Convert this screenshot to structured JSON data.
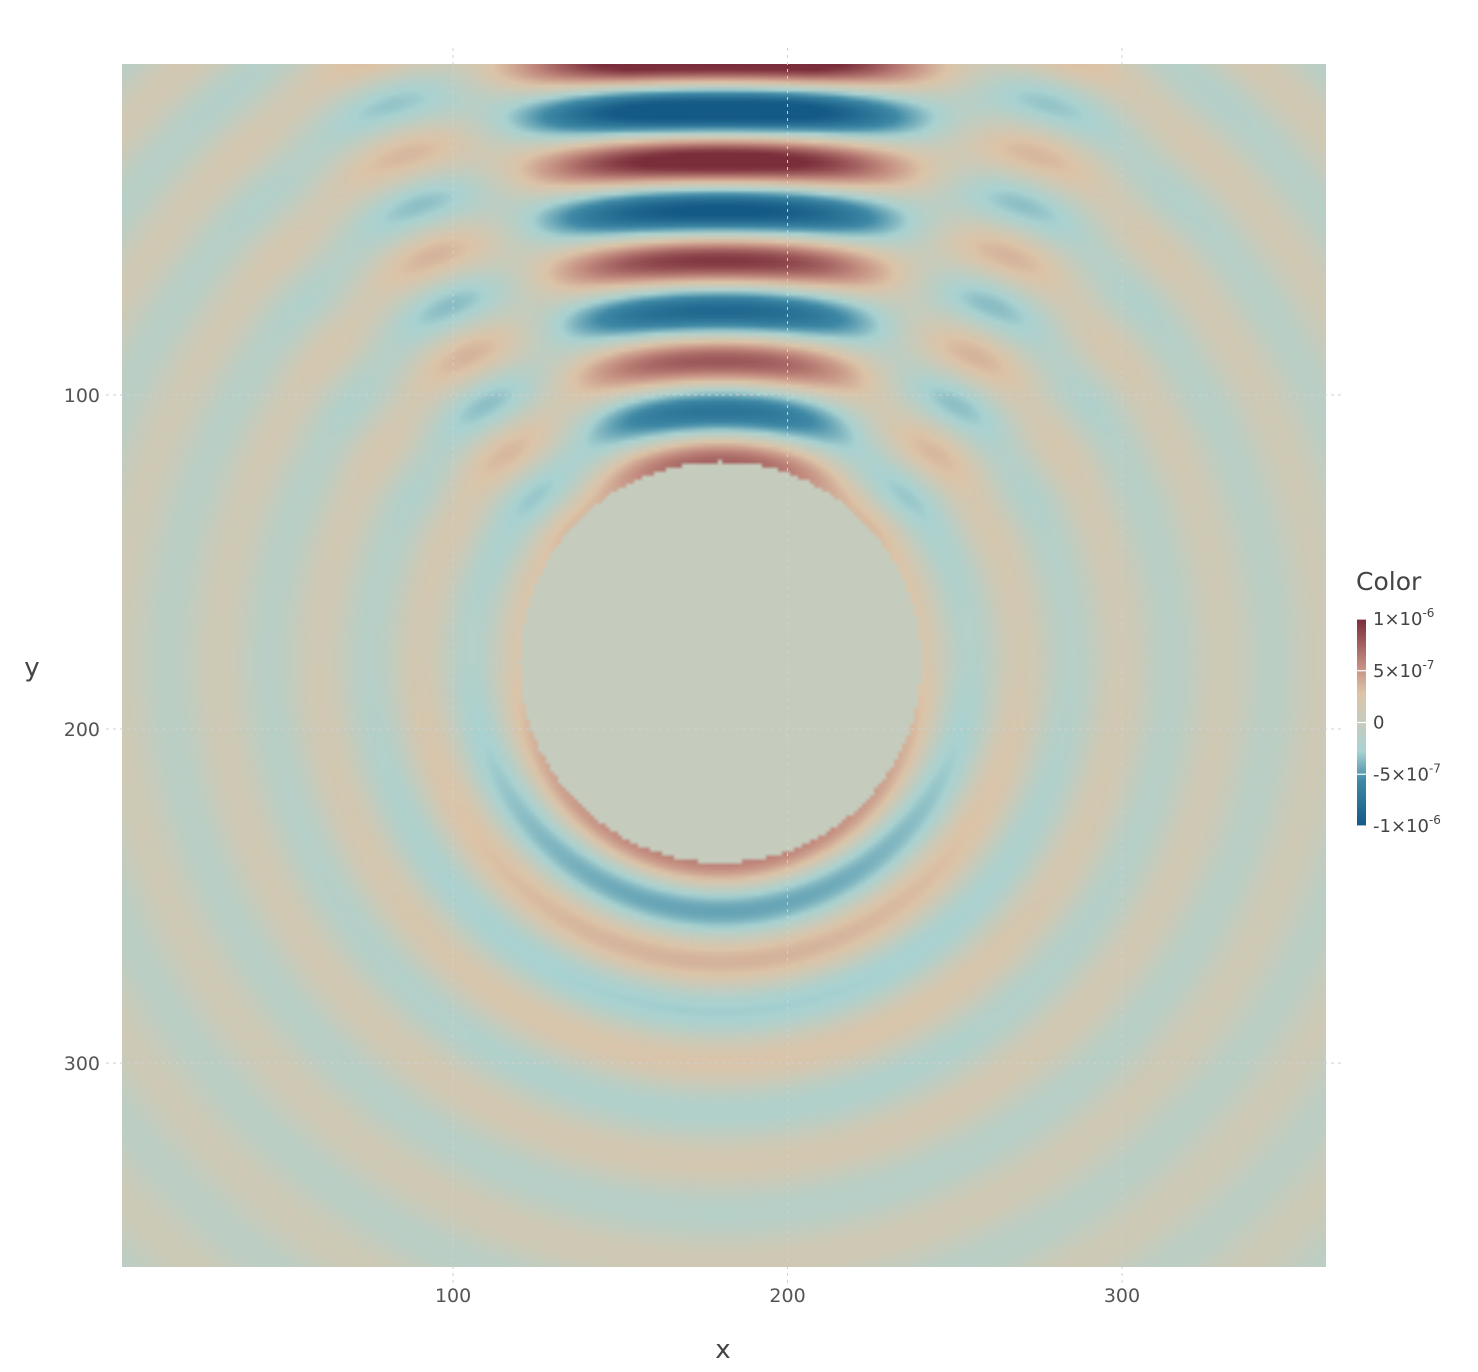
{
  "chart_data": {
    "type": "heatmap",
    "title": "",
    "xlabel": "x",
    "ylabel": "y",
    "xlim": [
      1,
      361
    ],
    "ylim": [
      1,
      361
    ],
    "y_reversed": true,
    "x_ticks": [
      100,
      200,
      300
    ],
    "y_ticks": [
      100,
      200,
      300
    ],
    "x_tick_labels": [
      "100",
      "200",
      "300"
    ],
    "y_tick_labels": [
      "100",
      "200",
      "300"
    ],
    "grid": true,
    "field": {
      "description_source": "scattered wave field around a circular obstacle",
      "obstacle_center": [
        180,
        180
      ],
      "obstacle_radius": 60,
      "obstacle_value": 0,
      "incident_wavelength": 30,
      "value_range": [
        -1e-06,
        1e-06
      ]
    },
    "legend": {
      "title": "Color",
      "placement": "right",
      "ticks": [
        {
          "value": 1e-06,
          "mantissa": "1×10",
          "exp": "-6"
        },
        {
          "value": 5e-07,
          "mantissa": "5×10",
          "exp": "-7"
        },
        {
          "value": 0,
          "mantissa": "0",
          "exp": ""
        },
        {
          "value": -5e-07,
          "mantissa": "-5×10",
          "exp": "-7"
        },
        {
          "value": -1e-06,
          "mantissa": "-1×10",
          "exp": "-6"
        }
      ]
    },
    "colors": {
      "max": "#7a2d3a",
      "high": "#c28a7e",
      "mid_high": "#dcc4a8",
      "zero": "#c5ccbd",
      "mid_low": "#a9d2d1",
      "low": "#3f89a6",
      "min": "#145a86"
    }
  }
}
